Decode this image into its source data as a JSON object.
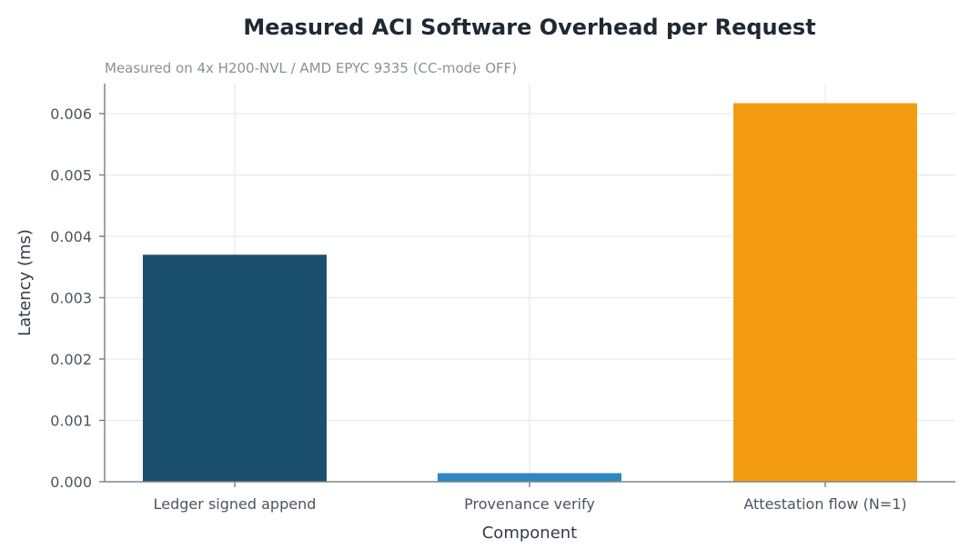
{
  "chart_data": {
    "type": "bar",
    "title": "Measured ACI Software Overhead per Request",
    "subtitle": "Measured on 4x H200-NVL / AMD EPYC 9335 (CC-mode OFF)",
    "xlabel": "Component",
    "ylabel": "Latency (ms)",
    "categories": [
      "Ledger signed append",
      "Provenance verify",
      "Attestation flow (N=1)"
    ],
    "values": [
      0.0037,
      0.00014,
      0.00617
    ],
    "colors": [
      "#1b4f6e",
      "#2f86c1",
      "#f39c12"
    ],
    "ylim": [
      0,
      0.0064
    ],
    "yticks": [
      0,
      0.001,
      0.002,
      0.003,
      0.004,
      0.005,
      0.006
    ],
    "ytick_labels": [
      "0.000",
      "0.001",
      "0.002",
      "0.003",
      "0.004",
      "0.005",
      "0.006"
    ],
    "grid": true,
    "legend": "none"
  }
}
